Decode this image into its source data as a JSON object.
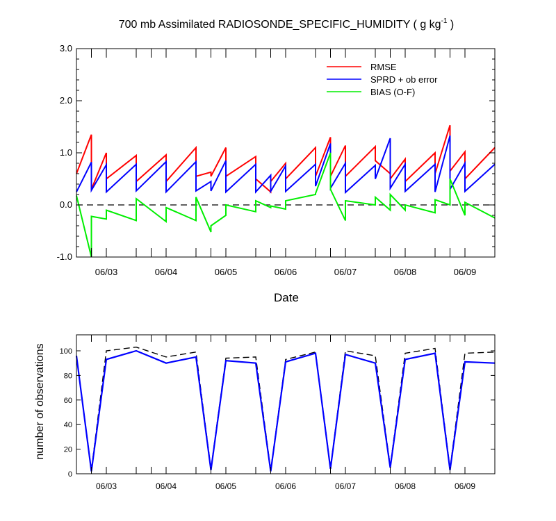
{
  "chart_data": [
    {
      "type": "line",
      "title": "700 mb Assimilated RADIOSONDE_SPECIFIC_HUMIDITY ( g kg",
      "title_sup": "-1",
      "title_end": " )",
      "xlabel": "Date",
      "ylabel": "",
      "ylim": [
        -1.0,
        3.0
      ],
      "yticks": [
        -1.0,
        0.0,
        1.0,
        2.0,
        3.0
      ],
      "ytick_labels": [
        "-1.0",
        "0.0",
        "1.0",
        "2.0",
        "3.0"
      ],
      "xlim": [
        2.5,
        9.5
      ],
      "xticks": [
        3,
        4,
        5,
        6,
        7,
        8,
        9
      ],
      "xtick_labels": [
        "06/03",
        "06/04",
        "06/05",
        "06/06",
        "06/07",
        "06/08",
        "06/09"
      ],
      "zero_line": "dashed",
      "legend_position": "top-right",
      "series": [
        {
          "name": "RMSE",
          "color": "#ff0000",
          "x": [
            2.5,
            2.75,
            2.75,
            3.0,
            3.0,
            3.5,
            3.5,
            4.0,
            4.0,
            4.5,
            4.5,
            4.75,
            4.75,
            5.0,
            5.0,
            5.5,
            5.5,
            5.75,
            5.75,
            6.0,
            6.0,
            6.5,
            6.5,
            6.75,
            6.75,
            7.0,
            7.0,
            7.5,
            7.5,
            7.75,
            7.75,
            8.0,
            8.0,
            8.5,
            8.5,
            8.75,
            8.75,
            9.0,
            9.0,
            9.5
          ],
          "y": [
            0.6,
            1.35,
            0.3,
            1.0,
            0.5,
            0.95,
            0.45,
            0.96,
            0.45,
            1.1,
            0.55,
            0.63,
            0.55,
            1.1,
            0.55,
            0.93,
            0.5,
            0.25,
            0.45,
            0.8,
            0.5,
            1.1,
            0.55,
            1.3,
            0.55,
            1.14,
            0.55,
            1.12,
            0.85,
            0.6,
            0.5,
            0.88,
            0.45,
            1.0,
            0.6,
            1.53,
            0.65,
            1.02,
            0.5,
            1.1
          ]
        },
        {
          "name": "SPRD + ob error",
          "color": "#0000ff",
          "x": [
            2.5,
            2.75,
            2.75,
            3.0,
            3.0,
            3.5,
            3.5,
            4.0,
            4.0,
            4.5,
            4.5,
            4.75,
            4.75,
            5.0,
            5.0,
            5.5,
            5.5,
            5.75,
            5.75,
            6.0,
            6.0,
            6.5,
            6.5,
            6.75,
            6.75,
            7.0,
            7.0,
            7.5,
            7.5,
            7.75,
            7.75,
            8.0,
            8.0,
            8.5,
            8.5,
            8.75,
            8.75,
            9.0,
            9.0,
            9.5
          ],
          "y": [
            0.25,
            0.82,
            0.28,
            0.77,
            0.25,
            0.78,
            0.27,
            0.83,
            0.25,
            0.83,
            0.27,
            0.45,
            0.27,
            0.85,
            0.25,
            0.78,
            0.25,
            0.57,
            0.26,
            0.75,
            0.26,
            0.78,
            0.36,
            1.18,
            0.32,
            0.8,
            0.24,
            0.76,
            0.5,
            1.28,
            0.32,
            0.78,
            0.26,
            0.78,
            0.25,
            1.33,
            0.3,
            0.8,
            0.26,
            0.78
          ]
        },
        {
          "name": "BIAS (O-F)",
          "color": "#00ee00",
          "x": [
            2.5,
            2.75,
            2.75,
            3.0,
            3.0,
            3.5,
            3.5,
            4.0,
            4.0,
            4.5,
            4.5,
            4.75,
            4.75,
            5.0,
            5.0,
            5.5,
            5.5,
            5.75,
            5.75,
            6.0,
            6.0,
            6.5,
            6.5,
            6.75,
            6.75,
            7.0,
            7.0,
            7.5,
            7.5,
            7.75,
            7.75,
            8.0,
            8.0,
            8.5,
            8.5,
            8.75,
            8.75,
            9.0,
            9.0,
            9.5
          ],
          "y": [
            0.18,
            -1.0,
            -0.22,
            -0.27,
            -0.1,
            -0.3,
            0.12,
            -0.32,
            -0.05,
            -0.3,
            0.15,
            -0.52,
            -0.4,
            -0.2,
            0.0,
            -0.13,
            0.08,
            -0.05,
            -0.02,
            -0.08,
            0.08,
            0.2,
            0.22,
            1.0,
            0.3,
            -0.3,
            0.08,
            0.0,
            0.15,
            -0.1,
            0.2,
            -0.1,
            0.0,
            -0.15,
            0.1,
            0.0,
            0.5,
            -0.2,
            0.05,
            -0.25
          ]
        }
      ]
    },
    {
      "type": "line",
      "title": "",
      "xlabel": "",
      "ylabel": "number of observations",
      "ylim": [
        0,
        113
      ],
      "yticks": [
        0,
        20,
        40,
        60,
        80,
        100
      ],
      "ytick_labels": [
        "0",
        "20",
        "40",
        "60",
        "80",
        "100"
      ],
      "xlim": [
        2.5,
        9.5
      ],
      "xticks": [
        3,
        4,
        5,
        6,
        7,
        8,
        9
      ],
      "xtick_labels": [
        "06/03",
        "06/04",
        "06/05",
        "06/06",
        "06/07",
        "06/08",
        "06/09"
      ],
      "series": [
        {
          "color": "#000000",
          "style": "dashed",
          "x": [
            2.5,
            2.75,
            3.0,
            3.5,
            4.0,
            4.5,
            4.75,
            5.0,
            5.5,
            5.75,
            6.0,
            6.5,
            6.75,
            7.0,
            7.5,
            7.75,
            8.0,
            8.5,
            8.75,
            9.0,
            9.5
          ],
          "y": [
            96,
            3,
            100,
            103,
            95,
            99,
            4,
            94,
            95,
            3,
            93,
            99,
            5,
            100,
            96,
            6,
            98,
            102,
            4,
            98,
            99
          ]
        },
        {
          "color": "#0000ff",
          "style": "solid",
          "x": [
            2.5,
            2.75,
            3.0,
            3.5,
            4.0,
            4.5,
            4.75,
            5.0,
            5.5,
            5.75,
            6.0,
            6.5,
            6.75,
            7.0,
            7.5,
            7.75,
            8.0,
            8.5,
            8.75,
            9.0,
            9.5
          ],
          "y": [
            96,
            2,
            93,
            100,
            90,
            95,
            3,
            92,
            90,
            2,
            91,
            98,
            4,
            97,
            90,
            5,
            93,
            98,
            3,
            91,
            90
          ]
        }
      ]
    }
  ]
}
